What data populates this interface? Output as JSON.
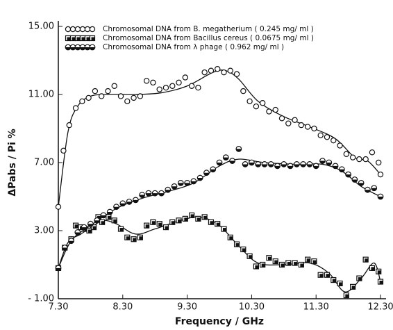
{
  "chart_data": {
    "type": "scatter",
    "xlabel": "Frequency / GHz",
    "ylabel": "ΔPabs / Pi  %",
    "xlim": [
      7.3,
      12.3
    ],
    "xticks": [
      {
        "value": 7.3,
        "label": "7.30"
      },
      {
        "value": 8.3,
        "label": "8.30"
      },
      {
        "value": 9.3,
        "label": "9.30"
      },
      {
        "value": 10.3,
        "label": "10.30"
      },
      {
        "value": 11.3,
        "label": "11.30"
      },
      {
        "value": 12.3,
        "label": "12.30"
      }
    ],
    "ylim": [
      -1,
      15
    ],
    "yticks": [
      {
        "value": -1,
        "label": "- 1.00"
      },
      {
        "value": 3,
        "label": "3.00"
      },
      {
        "value": 7,
        "label": "7.00"
      },
      {
        "value": 11,
        "label": "11.00"
      },
      {
        "value": 15,
        "label": "15.00"
      }
    ],
    "legend": "upper left",
    "series": [
      {
        "name": "Chromosomal DNA from B. megatherium ( 0.245 mg/ ml )",
        "color": "#111111",
        "marker": "circle-open",
        "x": [
          7.3,
          7.38,
          7.47,
          7.57,
          7.67,
          7.77,
          7.87,
          7.97,
          8.07,
          8.17,
          8.27,
          8.37,
          8.47,
          8.57,
          8.67,
          8.77,
          8.87,
          8.97,
          9.07,
          9.17,
          9.27,
          9.37,
          9.47,
          9.57,
          9.67,
          9.77,
          9.87,
          9.97,
          10.07,
          10.17,
          10.27,
          10.37,
          10.47,
          10.57,
          10.67,
          10.77,
          10.87,
          10.97,
          11.07,
          11.17,
          11.27,
          11.37,
          11.47,
          11.57,
          11.67,
          11.77,
          11.87,
          11.97,
          12.07,
          12.17,
          12.27,
          12.3
        ],
        "values": [
          4.4,
          7.7,
          9.2,
          10.2,
          10.6,
          10.8,
          11.2,
          10.9,
          11.2,
          11.5,
          10.9,
          10.6,
          10.8,
          10.9,
          11.8,
          11.7,
          11.3,
          11.4,
          11.5,
          11.7,
          12.0,
          11.5,
          11.4,
          12.3,
          12.4,
          12.5,
          12.3,
          12.4,
          12.2,
          11.2,
          10.6,
          10.3,
          10.5,
          10.0,
          10.1,
          9.6,
          9.3,
          9.5,
          9.2,
          9.1,
          9.0,
          8.6,
          8.5,
          8.3,
          8.0,
          7.5,
          7.3,
          7.2,
          7.2,
          7.6,
          7.0,
          6.3
        ],
        "fit": {
          "x": [
            7.3,
            7.45,
            7.6,
            7.8,
            8.1,
            8.5,
            8.9,
            9.3,
            9.7,
            9.9,
            10.1,
            10.4,
            10.8,
            11.2,
            11.6,
            11.9,
            12.1,
            12.3
          ],
          "values": [
            4.4,
            8.8,
            10.3,
            10.9,
            11.0,
            11.0,
            11.1,
            11.5,
            12.3,
            12.4,
            11.9,
            10.6,
            9.7,
            9.1,
            8.4,
            7.3,
            7.1,
            6.3
          ]
        }
      },
      {
        "name": "Chromosomal DNA from Bacillus cereus ( 0.0675 mg/ ml )",
        "color": "#111111",
        "marker": "square",
        "x": [
          7.3,
          7.4,
          7.5,
          7.57,
          7.65,
          7.72,
          7.78,
          7.85,
          7.92,
          7.98,
          8.08,
          8.17,
          8.27,
          8.37,
          8.47,
          8.57,
          8.67,
          8.77,
          8.87,
          8.97,
          9.07,
          9.17,
          9.27,
          9.37,
          9.47,
          9.57,
          9.67,
          9.77,
          9.87,
          9.97,
          10.07,
          10.17,
          10.27,
          10.37,
          10.47,
          10.57,
          10.67,
          10.77,
          10.87,
          10.97,
          11.07,
          11.17,
          11.27,
          11.37,
          11.47,
          11.57,
          11.67,
          11.77,
          11.87,
          11.97,
          12.07,
          12.17,
          12.27,
          12.3
        ],
        "values": [
          0.8,
          2.0,
          2.5,
          3.3,
          3.2,
          3.1,
          3.0,
          3.2,
          3.8,
          3.5,
          3.8,
          3.6,
          3.1,
          2.6,
          2.5,
          2.6,
          3.3,
          3.5,
          3.4,
          3.2,
          3.5,
          3.6,
          3.7,
          3.9,
          3.7,
          3.8,
          3.5,
          3.4,
          3.1,
          2.6,
          2.2,
          1.9,
          1.5,
          0.9,
          1.0,
          1.4,
          1.2,
          1.0,
          1.1,
          1.1,
          1.0,
          1.3,
          1.2,
          0.4,
          0.4,
          0.1,
          -0.1,
          -0.8,
          -0.3,
          0.2,
          1.3,
          0.8,
          0.6,
          0.0
        ],
        "fit": {
          "x": [
            7.3,
            7.45,
            7.65,
            7.85,
            8.0,
            8.2,
            8.5,
            8.8,
            9.2,
            9.5,
            9.8,
            10.1,
            10.4,
            10.8,
            11.2,
            11.5,
            11.75,
            12.0,
            12.2,
            12.3
          ],
          "values": [
            0.8,
            2.3,
            2.8,
            3.3,
            3.6,
            3.4,
            2.8,
            3.1,
            3.6,
            3.8,
            3.3,
            2.1,
            1.1,
            1.0,
            1.1,
            0.5,
            -0.6,
            0.2,
            1.1,
            0.0
          ]
        }
      },
      {
        "name": "Chromosomal DNA from λ phage ( 0.962 mg/ ml )",
        "color": "#111111",
        "marker": "circle-half",
        "x": [
          7.3,
          7.4,
          7.5,
          7.6,
          7.7,
          7.8,
          7.9,
          8.0,
          8.1,
          8.2,
          8.3,
          8.4,
          8.5,
          8.6,
          8.7,
          8.8,
          8.9,
          9.0,
          9.1,
          9.2,
          9.3,
          9.4,
          9.5,
          9.6,
          9.7,
          9.8,
          9.9,
          10.0,
          10.1,
          10.2,
          10.3,
          10.4,
          10.5,
          10.6,
          10.7,
          10.8,
          10.9,
          11.0,
          11.1,
          11.2,
          11.3,
          11.4,
          11.5,
          11.6,
          11.7,
          11.8,
          11.9,
          12.0,
          12.1,
          12.2,
          12.3
        ],
        "values": [
          0.8,
          2.0,
          2.4,
          2.9,
          3.2,
          3.4,
          3.6,
          3.9,
          4.1,
          4.4,
          4.6,
          4.7,
          4.8,
          5.1,
          5.2,
          5.2,
          5.2,
          5.4,
          5.6,
          5.8,
          5.8,
          5.9,
          6.1,
          6.4,
          6.6,
          7.0,
          7.3,
          7.1,
          7.8,
          6.9,
          7.0,
          6.9,
          6.9,
          6.9,
          6.8,
          6.9,
          6.8,
          6.9,
          6.9,
          6.9,
          6.8,
          7.1,
          7.0,
          6.8,
          6.6,
          6.3,
          6.0,
          5.8,
          5.4,
          5.5,
          5.0
        ],
        "fit": {
          "x": [
            7.3,
            7.5,
            7.8,
            8.2,
            8.6,
            9.0,
            9.4,
            9.8,
            10.1,
            10.5,
            11.0,
            11.4,
            11.7,
            12.0,
            12.3
          ],
          "values": [
            0.8,
            2.4,
            3.3,
            4.3,
            4.9,
            5.3,
            5.8,
            6.8,
            7.2,
            7.0,
            6.9,
            6.9,
            6.5,
            5.6,
            5.0
          ]
        }
      }
    ]
  }
}
